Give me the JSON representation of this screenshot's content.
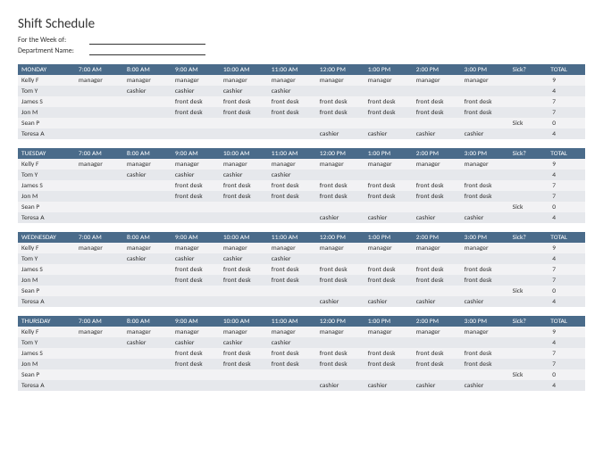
{
  "title": "Shift Schedule",
  "meta": {
    "week_label": "For the Week of:",
    "dept_label": "Department Name:"
  },
  "colors": {
    "header_bg": "#4a6b8a",
    "header_text": "#ffffff",
    "row_even_bg": "#f2f2f4",
    "row_odd_bg": "#e6e8ec",
    "text": "#333333"
  },
  "time_headers": [
    "7:00 AM",
    "8:00 AM",
    "9:00 AM",
    "10:00 AM",
    "11:00 AM",
    "12:00 PM",
    "1:00 PM",
    "2:00 PM",
    "3:00 PM"
  ],
  "sick_header": "Sick?",
  "total_header": "TOTAL",
  "days": [
    {
      "name": "MONDAY",
      "rows": [
        {
          "name": "Kelly F",
          "cells": [
            "manager",
            "manager",
            "manager",
            "manager",
            "manager",
            "manager",
            "manager",
            "manager",
            "manager"
          ],
          "sick": "",
          "total": "9"
        },
        {
          "name": "Tom Y",
          "cells": [
            "",
            "cashier",
            "cashier",
            "cashier",
            "cashier",
            "",
            "",
            "",
            ""
          ],
          "sick": "",
          "total": "4"
        },
        {
          "name": "James S",
          "cells": [
            "",
            "",
            "front desk",
            "front desk",
            "front desk",
            "front desk",
            "front desk",
            "front desk",
            "front desk"
          ],
          "sick": "",
          "total": "7"
        },
        {
          "name": "Jon M",
          "cells": [
            "",
            "",
            "front desk",
            "front desk",
            "front desk",
            "front desk",
            "front desk",
            "front desk",
            "front desk"
          ],
          "sick": "",
          "total": "7"
        },
        {
          "name": "Sean P",
          "cells": [
            "",
            "",
            "",
            "",
            "",
            "",
            "",
            "",
            ""
          ],
          "sick": "Sick",
          "total": "0"
        },
        {
          "name": "Teresa A",
          "cells": [
            "",
            "",
            "",
            "",
            "",
            "cashier",
            "cashier",
            "cashier",
            "cashier"
          ],
          "sick": "",
          "total": "4"
        }
      ]
    },
    {
      "name": "TUESDAY",
      "rows": [
        {
          "name": "Kelly F",
          "cells": [
            "manager",
            "manager",
            "manager",
            "manager",
            "manager",
            "manager",
            "manager",
            "manager",
            "manager"
          ],
          "sick": "",
          "total": "9"
        },
        {
          "name": "Tom Y",
          "cells": [
            "",
            "cashier",
            "cashier",
            "cashier",
            "cashier",
            "",
            "",
            "",
            ""
          ],
          "sick": "",
          "total": "4"
        },
        {
          "name": "James S",
          "cells": [
            "",
            "",
            "front desk",
            "front desk",
            "front desk",
            "front desk",
            "front desk",
            "front desk",
            "front desk"
          ],
          "sick": "",
          "total": "7"
        },
        {
          "name": "Jon M",
          "cells": [
            "",
            "",
            "front desk",
            "front desk",
            "front desk",
            "front desk",
            "front desk",
            "front desk",
            "front desk"
          ],
          "sick": "",
          "total": "7"
        },
        {
          "name": "Sean P",
          "cells": [
            "",
            "",
            "",
            "",
            "",
            "",
            "",
            "",
            ""
          ],
          "sick": "Sick",
          "total": "0"
        },
        {
          "name": "Teresa A",
          "cells": [
            "",
            "",
            "",
            "",
            "",
            "cashier",
            "cashier",
            "cashier",
            "cashier"
          ],
          "sick": "",
          "total": "4"
        }
      ]
    },
    {
      "name": "WEDNESDAY",
      "rows": [
        {
          "name": "Kelly F",
          "cells": [
            "manager",
            "manager",
            "manager",
            "manager",
            "manager",
            "manager",
            "manager",
            "manager",
            "manager"
          ],
          "sick": "",
          "total": "9"
        },
        {
          "name": "Tom Y",
          "cells": [
            "",
            "cashier",
            "cashier",
            "cashier",
            "cashier",
            "",
            "",
            "",
            ""
          ],
          "sick": "",
          "total": "4"
        },
        {
          "name": "James S",
          "cells": [
            "",
            "",
            "front desk",
            "front desk",
            "front desk",
            "front desk",
            "front desk",
            "front desk",
            "front desk"
          ],
          "sick": "",
          "total": "7"
        },
        {
          "name": "Jon M",
          "cells": [
            "",
            "",
            "front desk",
            "front desk",
            "front desk",
            "front desk",
            "front desk",
            "front desk",
            "front desk"
          ],
          "sick": "",
          "total": "7"
        },
        {
          "name": "Sean P",
          "cells": [
            "",
            "",
            "",
            "",
            "",
            "",
            "",
            "",
            ""
          ],
          "sick": "Sick",
          "total": "0"
        },
        {
          "name": "Teresa A",
          "cells": [
            "",
            "",
            "",
            "",
            "",
            "cashier",
            "cashier",
            "cashier",
            "cashier"
          ],
          "sick": "",
          "total": "4"
        }
      ]
    },
    {
      "name": "THURSDAY",
      "rows": [
        {
          "name": "Kelly F",
          "cells": [
            "manager",
            "manager",
            "manager",
            "manager",
            "manager",
            "manager",
            "manager",
            "manager",
            "manager"
          ],
          "sick": "",
          "total": "9"
        },
        {
          "name": "Tom Y",
          "cells": [
            "",
            "cashier",
            "cashier",
            "cashier",
            "cashier",
            "",
            "",
            "",
            ""
          ],
          "sick": "",
          "total": "4"
        },
        {
          "name": "James S",
          "cells": [
            "",
            "",
            "front desk",
            "front desk",
            "front desk",
            "front desk",
            "front desk",
            "front desk",
            "front desk"
          ],
          "sick": "",
          "total": "7"
        },
        {
          "name": "Jon M",
          "cells": [
            "",
            "",
            "front desk",
            "front desk",
            "front desk",
            "front desk",
            "front desk",
            "front desk",
            "front desk"
          ],
          "sick": "",
          "total": "7"
        },
        {
          "name": "Sean P",
          "cells": [
            "",
            "",
            "",
            "",
            "",
            "",
            "",
            "",
            ""
          ],
          "sick": "Sick",
          "total": "0"
        },
        {
          "name": "Teresa A",
          "cells": [
            "",
            "",
            "",
            "",
            "",
            "cashier",
            "cashier",
            "cashier",
            "cashier"
          ],
          "sick": "",
          "total": "4"
        }
      ]
    }
  ]
}
